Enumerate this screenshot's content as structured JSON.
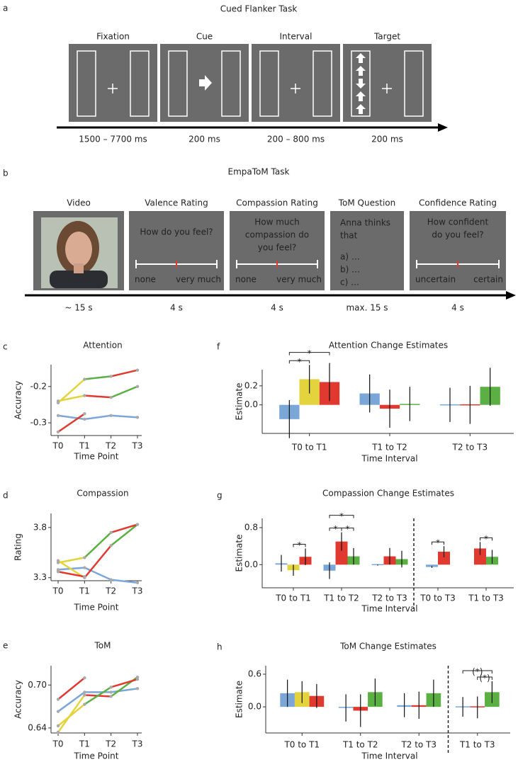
{
  "panel_a": {
    "label": "a",
    "title": "Cued Flanker Task",
    "screens": [
      {
        "label": "Fixation",
        "duration": "1500 – 7700 ms"
      },
      {
        "label": "Cue",
        "duration": "200 ms"
      },
      {
        "label": "Interval",
        "duration": "200 – 800 ms"
      },
      {
        "label": "Target",
        "duration": "200 ms"
      }
    ]
  },
  "panel_b": {
    "label": "b",
    "title": "EmpaToM Task",
    "screens": [
      {
        "label": "Video",
        "duration": "~ 15 s"
      },
      {
        "label": "Valence Rating",
        "duration": "4 s",
        "question": [
          "How do you feel?"
        ],
        "scale": [
          "none",
          "very much"
        ]
      },
      {
        "label": "Compassion Rating",
        "duration": "4 s",
        "question": [
          "How much",
          "compassion do",
          "you feel?"
        ],
        "scale": [
          "none",
          "very much"
        ]
      },
      {
        "label": "ToM Question",
        "duration": "max. 15 s",
        "question": [
          "Anna thinks",
          "that"
        ],
        "options": [
          "a) …",
          "b) …",
          "c) …"
        ]
      },
      {
        "label": "Confidence Rating",
        "duration": "4 s",
        "question": [
          "How confident",
          "do you feel?"
        ],
        "scale": [
          "uncertain",
          "certain"
        ]
      }
    ]
  },
  "chart_data": [
    {
      "type": "line",
      "panel": "c",
      "title": "Attention",
      "xlabel": "Time Point",
      "ylabel": "Accuracy",
      "categories": [
        "T0",
        "T1",
        "T2",
        "T3"
      ],
      "ylim": [
        -0.335,
        -0.14
      ],
      "yticks": [
        -0.3,
        -0.2
      ],
      "series": [
        {
          "segment_colors": [
            "#7ba7d8",
            "#7ba7d8",
            "#7ba7d8"
          ],
          "values": [
            -0.28,
            -0.29,
            -0.28,
            -0.285
          ]
        },
        {
          "segment_colors": [
            "#e3d33c",
            "#5bb043",
            "#e0392f"
          ],
          "values": [
            -0.245,
            -0.18,
            -0.172,
            -0.155
          ]
        },
        {
          "segment_colors": [
            "#e3d33c",
            "#e0392f",
            "#5bb043"
          ],
          "values": [
            -0.24,
            -0.225,
            -0.23,
            -0.2
          ]
        },
        {
          "segment_colors": [
            "#e0392f",
            "#e0392f",
            "#e0392f"
          ],
          "values": [
            -0.325,
            -0.275,
            null,
            null
          ]
        }
      ]
    },
    {
      "type": "line",
      "panel": "d",
      "title": "Compassion",
      "xlabel": "Time Point",
      "ylabel": "Rating",
      "categories": [
        "T0",
        "T1",
        "T2",
        "T3"
      ],
      "ylim": [
        3.27,
        3.94
      ],
      "yticks": [
        3.3,
        3.8
      ],
      "series": [
        {
          "segment_colors": [
            "#7ba7d8",
            "#7ba7d8",
            "#7ba7d8"
          ],
          "values": [
            3.38,
            3.4,
            3.28,
            3.25
          ]
        },
        {
          "segment_colors": [
            "#e3d33c",
            "#e0392f",
            "#5bb043"
          ],
          "values": [
            3.47,
            3.3,
            3.62,
            3.83
          ]
        },
        {
          "segment_colors": [
            "#e3d33c",
            "#5bb043",
            "#e0392f"
          ],
          "values": [
            3.45,
            3.5,
            3.75,
            3.83
          ]
        },
        {
          "segment_colors": [
            "#e0392f",
            "#e0392f",
            "#e0392f"
          ],
          "values": [
            3.36,
            3.31,
            null,
            null
          ]
        }
      ]
    },
    {
      "type": "line",
      "panel": "e",
      "title": "ToM",
      "xlabel": "Time Point",
      "ylabel": "Accuracy",
      "categories": [
        "T0",
        "T1",
        "T2",
        "T3"
      ],
      "ylim": [
        0.633,
        0.727
      ],
      "yticks": [
        0.64,
        {
          "value": 0.7,
          "label": "0.70"
        }
      ],
      "series": [
        {
          "segment_colors": [
            "#7ba7d8",
            "#7ba7d8",
            "#7ba7d8"
          ],
          "values": [
            0.663,
            0.69,
            0.69,
            0.695
          ]
        },
        {
          "segment_colors": [
            "#e3d33c",
            "#e0392f",
            "#5bb043"
          ],
          "values": [
            0.634,
            0.686,
            0.684,
            0.711
          ]
        },
        {
          "segment_colors": [
            "#e3d33c",
            "#5bb043",
            "#e0392f"
          ],
          "values": [
            0.643,
            0.673,
            0.697,
            0.708
          ]
        },
        {
          "segment_colors": [
            "#e0392f",
            "#e0392f",
            "#e0392f"
          ],
          "values": [
            0.68,
            0.71,
            null,
            null
          ]
        }
      ]
    },
    {
      "type": "bar",
      "panel": "f",
      "title": "Attention Change Estimates",
      "xlabel": "Time Interval",
      "ylabel": "Estimate",
      "categories": [
        "T0 to T1",
        "T1 to T2",
        "T2 to T3"
      ],
      "ylim": [
        -0.3,
        0.37
      ],
      "yticks": [
        {
          "value": 0,
          "label": "0.0"
        },
        0.2
      ],
      "series": [
        {
          "color": "#7ba7d8",
          "values": [
            -0.15,
            0.12,
            0.0
          ],
          "errors": [
            0.2,
            0.2,
            0.18
          ]
        },
        {
          "color": "#e3d33c",
          "values": [
            0.27,
            null,
            null
          ],
          "errors": [
            0.15,
            null,
            null
          ]
        },
        {
          "color": "#e0392f",
          "values": [
            0.24,
            -0.04,
            0.0
          ],
          "errors": [
            0.2,
            0.2,
            0.2
          ]
        },
        {
          "color": "#5bb043",
          "values": [
            null,
            0.01,
            0.19
          ],
          "errors": [
            null,
            0.18,
            0.2
          ]
        }
      ],
      "annotations": [
        {
          "text": "*",
          "category": 0,
          "between": [
            0,
            1
          ]
        },
        {
          "text": "*",
          "category": 0,
          "between": [
            0,
            2
          ]
        }
      ]
    },
    {
      "type": "bar",
      "panel": "g",
      "title": "Compassion Change Estimates",
      "xlabel": "Time Interval",
      "ylabel": "Estimate",
      "categories": [
        "T0 to T1",
        "T1 to T2",
        "T2 to T3",
        "T0 to T3",
        "T1 to T3"
      ],
      "ylim": [
        -0.5,
        1.0
      ],
      "yticks": [
        {
          "value": 0,
          "label": "0.0"
        },
        0.8
      ],
      "divider_after": 2,
      "series": [
        {
          "color": "#7ba7d8",
          "values": [
            0.03,
            -0.13,
            -0.01,
            -0.05,
            null
          ],
          "errors": [
            0.18,
            0.18,
            0.01,
            0.02,
            null
          ]
        },
        {
          "color": "#e3d33c",
          "values": [
            -0.12,
            null,
            null,
            null,
            null
          ],
          "errors": [
            0.12,
            null,
            null,
            null,
            null
          ]
        },
        {
          "color": "#e0392f",
          "values": [
            0.17,
            0.5,
            0.18,
            0.28,
            0.35
          ],
          "errors": [
            0.18,
            0.2,
            0.18,
            0.12,
            0.14
          ]
        },
        {
          "color": "#5bb043",
          "values": [
            null,
            0.18,
            0.12,
            null,
            0.17
          ],
          "errors": [
            null,
            0.18,
            0.18,
            null,
            0.15
          ]
        }
      ],
      "annotations": [
        {
          "text": "*",
          "category": 0,
          "between": [
            1,
            2
          ]
        },
        {
          "text": "*",
          "category": 1,
          "between": [
            0,
            2
          ]
        },
        {
          "text": "*",
          "category": 1,
          "between": [
            2,
            3
          ]
        },
        {
          "text": "*",
          "category": 1,
          "between": [
            0,
            3
          ]
        },
        {
          "text": "*",
          "category": 3,
          "between": [
            0,
            2
          ]
        },
        {
          "text": "*",
          "category": 4,
          "between": [
            2,
            3
          ]
        }
      ]
    },
    {
      "type": "bar",
      "panel": "h",
      "title": "ToM Change Estimates",
      "xlabel": "Time Interval",
      "ylabel": "Estimate",
      "categories": [
        "T0 to T1",
        "T1 to T2",
        "T2 to T3",
        "T1 to T3"
      ],
      "ylim": [
        -0.48,
        0.756
      ],
      "yticks": [
        {
          "value": 0,
          "label": "0.0"
        },
        0.6
      ],
      "divider_after": 2,
      "series": [
        {
          "color": "#7ba7d8",
          "values": [
            0.25,
            -0.02,
            0.03,
            0.0
          ],
          "errors": [
            0.25,
            0.25,
            0.22,
            0.18
          ]
        },
        {
          "color": "#e3d33c",
          "values": [
            0.27,
            null,
            null,
            null
          ],
          "errors": [
            0.2,
            null,
            null,
            null
          ]
        },
        {
          "color": "#e0392f",
          "values": [
            0.2,
            -0.07,
            0.03,
            -0.01
          ],
          "errors": [
            0.22,
            0.3,
            0.25,
            0.2
          ]
        },
        {
          "color": "#5bb043",
          "values": [
            null,
            0.27,
            0.25,
            0.27
          ],
          "errors": [
            null,
            0.25,
            0.25,
            0.2
          ]
        }
      ],
      "annotations": [
        {
          "text": "(*)",
          "category": 3,
          "between": [
            2,
            3
          ]
        },
        {
          "text": "(*)",
          "category": 3,
          "between": [
            0,
            3
          ]
        }
      ]
    }
  ]
}
